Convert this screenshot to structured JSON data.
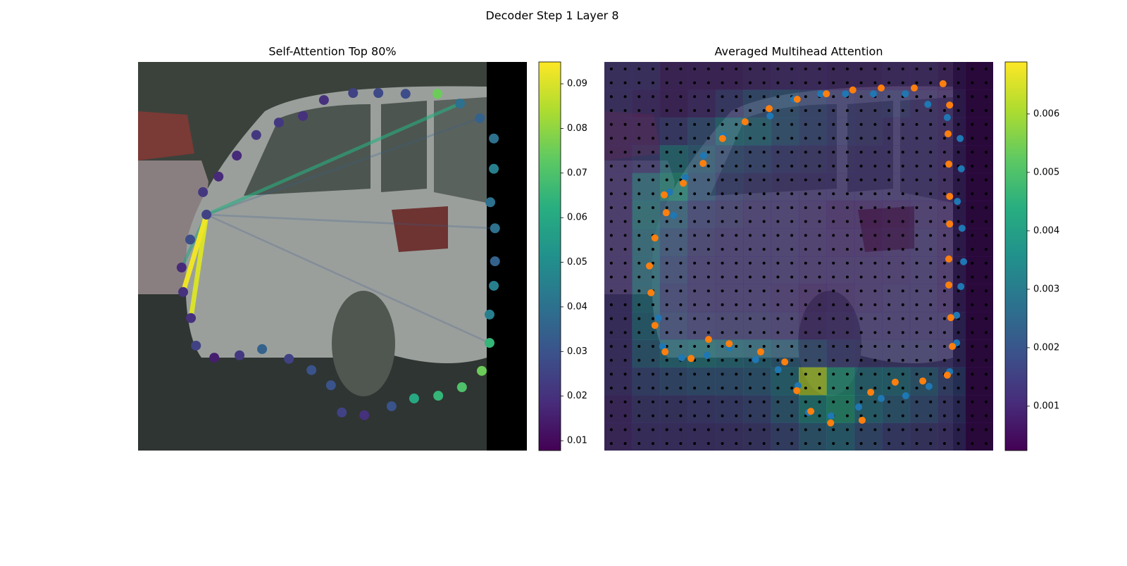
{
  "title": "Decoder Step 1 Layer 8",
  "chart_data": [
    {
      "type": "scatter",
      "title": "Self-Attention Top 80%",
      "colormap": "viridis",
      "xlim": [
        0,
        100
      ],
      "ylim": [
        100,
        0
      ],
      "clim": [
        0.0078,
        0.0949
      ],
      "cticks": [
        0.01,
        0.02,
        0.03,
        0.04,
        0.05,
        0.06,
        0.07,
        0.08,
        0.09
      ],
      "x": [
        47.8,
        55.3,
        61.8,
        68.8,
        77.0,
        82.8,
        87.9,
        91.5,
        91.5,
        90.6,
        91.8,
        91.8,
        91.5,
        90.4,
        90.4,
        88.4,
        83.3,
        77.2,
        71.0,
        65.2,
        58.2,
        52.4,
        49.6,
        44.6,
        38.8,
        31.9,
        26.1,
        19.6,
        14.9,
        13.6,
        11.6,
        11.2,
        13.4,
        17.6,
        16.7,
        20.7,
        25.4,
        30.4,
        36.2,
        42.4
      ],
      "y": [
        9.8,
        8.0,
        8.0,
        8.2,
        8.2,
        10.7,
        14.5,
        19.7,
        27.5,
        36.1,
        42.8,
        51.3,
        57.6,
        65.0,
        72.3,
        79.5,
        83.7,
        85.9,
        86.6,
        88.6,
        90.9,
        90.2,
        83.2,
        79.3,
        76.4,
        73.9,
        75.5,
        76.1,
        73.0,
        65.9,
        59.2,
        52.9,
        45.7,
        39.3,
        33.5,
        29.5,
        24.1,
        18.8,
        15.6,
        13.9
      ],
      "values": [
        0.02,
        0.025,
        0.027,
        0.028,
        0.075,
        0.04,
        0.035,
        0.04,
        0.045,
        0.04,
        0.04,
        0.035,
        0.045,
        0.045,
        0.065,
        0.075,
        0.07,
        0.065,
        0.06,
        0.03,
        0.02,
        0.025,
        0.03,
        0.03,
        0.025,
        0.035,
        0.022,
        0.015,
        0.025,
        0.02,
        0.02,
        0.018,
        0.028,
        0.025,
        0.022,
        0.018,
        0.018,
        0.022,
        0.022,
        0.02
      ],
      "lines": [
        {
          "from": 33,
          "to": 6,
          "value": 0.035
        },
        {
          "from": 33,
          "to": 14,
          "value": 0.03
        },
        {
          "from": 33,
          "to": 10,
          "value": 0.032
        },
        {
          "from": 33,
          "to": 31,
          "value": 0.058
        },
        {
          "from": 33,
          "to": 5,
          "value": 0.062
        },
        {
          "from": 33,
          "to": 29,
          "value": 0.09
        },
        {
          "from": 33,
          "to": 30,
          "value": 0.093
        }
      ]
    },
    {
      "type": "heatmap",
      "title": "Averaged Multihead Attention",
      "colormap": "viridis",
      "xlim": [
        0,
        100
      ],
      "ylim": [
        100,
        0
      ],
      "clim": [
        0.00024,
        0.00689
      ],
      "cticks": [
        0.001,
        0.002,
        0.003,
        0.004,
        0.005,
        0.006
      ],
      "z": [
        [
          0.0012,
          0.0012,
          0.0008,
          0.0008,
          0.0008,
          0.0009,
          0.001,
          0.001,
          0.0009,
          0.0009,
          0.001,
          0.001,
          0.0008,
          0.0005
        ],
        [
          0.0012,
          0.001,
          0.0008,
          0.001,
          0.0015,
          0.002,
          0.0022,
          0.0018,
          0.0015,
          0.0014,
          0.0015,
          0.0012,
          0.001,
          0.0005
        ],
        [
          0.0012,
          0.0012,
          0.0015,
          0.002,
          0.003,
          0.0028,
          0.0022,
          0.0018,
          0.0015,
          0.0014,
          0.0012,
          0.0012,
          0.001,
          0.0005
        ],
        [
          0.0012,
          0.0015,
          0.003,
          0.0025,
          0.002,
          0.0018,
          0.0015,
          0.0014,
          0.0013,
          0.0012,
          0.0012,
          0.0012,
          0.001,
          0.0005
        ],
        [
          0.0012,
          0.003,
          0.0038,
          0.0022,
          0.0016,
          0.0014,
          0.0013,
          0.0012,
          0.0012,
          0.0012,
          0.0012,
          0.0012,
          0.001,
          0.0005
        ],
        [
          0.0012,
          0.0032,
          0.0025,
          0.0016,
          0.0014,
          0.0012,
          0.0012,
          0.0011,
          0.0009,
          0.0009,
          0.001,
          0.0011,
          0.001,
          0.0005
        ],
        [
          0.0012,
          0.003,
          0.002,
          0.0014,
          0.0012,
          0.0012,
          0.0012,
          0.0011,
          0.001,
          0.001,
          0.0011,
          0.0012,
          0.001,
          0.0005
        ],
        [
          0.0012,
          0.003,
          0.0018,
          0.0013,
          0.0012,
          0.0012,
          0.0012,
          0.0011,
          0.0011,
          0.0011,
          0.0011,
          0.0012,
          0.001,
          0.0005
        ],
        [
          0.0012,
          0.003,
          0.0016,
          0.0013,
          0.0012,
          0.0012,
          0.0011,
          0.0009,
          0.001,
          0.0011,
          0.0012,
          0.0012,
          0.001,
          0.0005
        ],
        [
          0.0012,
          0.0028,
          0.0018,
          0.0015,
          0.0014,
          0.0014,
          0.0013,
          0.001,
          0.0011,
          0.0012,
          0.0012,
          0.0012,
          0.0012,
          0.0005
        ],
        [
          0.0012,
          0.0025,
          0.003,
          0.0032,
          0.003,
          0.0028,
          0.0025,
          0.002,
          0.0015,
          0.0014,
          0.0014,
          0.0014,
          0.0013,
          0.0005
        ],
        [
          0.0012,
          0.0018,
          0.002,
          0.0022,
          0.0022,
          0.0024,
          0.003,
          0.0062,
          0.004,
          0.003,
          0.003,
          0.0025,
          0.0018,
          0.0005
        ],
        [
          0.001,
          0.0014,
          0.0014,
          0.0015,
          0.0016,
          0.0018,
          0.0025,
          0.0035,
          0.0042,
          0.003,
          0.0025,
          0.002,
          0.0015,
          0.0005
        ],
        [
          0.001,
          0.0012,
          0.0012,
          0.0012,
          0.0013,
          0.0014,
          0.0018,
          0.0025,
          0.0028,
          0.002,
          0.0016,
          0.0014,
          0.0012,
          0.0005
        ]
      ],
      "points": [
        {
          "color": "#1f77b4",
          "x": [
            55.6,
            62.0,
            69.2,
            77.4,
            83.2,
            88.2,
            91.5,
            91.8,
            90.8,
            92.0,
            92.4,
            91.7,
            90.6,
            90.6,
            88.8,
            83.5,
            77.5,
            71.2,
            65.4,
            58.3,
            52.5,
            49.8,
            44.7,
            38.9,
            32.2,
            26.4,
            19.9,
            15.0,
            13.9,
            17.8,
            16.8,
            20.8,
            25.5,
            30.6,
            42.6,
            48.7
          ],
          "y": [
            8.2,
            8.2,
            8.2,
            8.2,
            10.9,
            14.3,
            19.7,
            27.5,
            35.9,
            42.8,
            51.4,
            57.8,
            65.2,
            72.3,
            79.7,
            83.5,
            85.9,
            86.6,
            88.8,
            91.1,
            90.2,
            83.3,
            79.2,
            76.6,
            73.6,
            75.5,
            76.1,
            73.2,
            65.9,
            39.5,
            33.5,
            29.7,
            24.1,
            19.0,
            13.9,
            9.6
          ]
        },
        {
          "color": "#ff7f0e",
          "x": [
            87.1,
            79.7,
            71.2,
            63.9,
            57.1,
            49.6,
            42.4,
            36.2,
            30.4,
            25.4,
            20.3,
            15.4,
            15.9,
            13.0,
            11.6,
            12.0,
            13.0,
            15.6,
            22.3,
            26.8,
            32.1,
            40.2,
            46.4,
            49.5,
            53.1,
            58.2,
            66.3,
            68.5,
            74.8,
            81.9,
            88.2,
            89.5,
            89.1,
            88.6,
            88.6,
            88.8,
            88.8,
            88.6,
            88.4,
            88.8
          ],
          "y": [
            5.6,
            6.7,
            6.7,
            7.2,
            8.2,
            9.6,
            12.0,
            15.4,
            19.7,
            26.1,
            31.2,
            34.2,
            38.8,
            45.3,
            52.5,
            59.4,
            67.8,
            74.6,
            76.3,
            71.4,
            72.5,
            74.6,
            77.2,
            84.6,
            89.9,
            92.9,
            92.2,
            85.0,
            82.4,
            82.1,
            80.6,
            73.2,
            65.8,
            57.4,
            50.7,
            41.7,
            34.6,
            26.3,
            18.5,
            11.1
          ]
        }
      ]
    }
  ]
}
